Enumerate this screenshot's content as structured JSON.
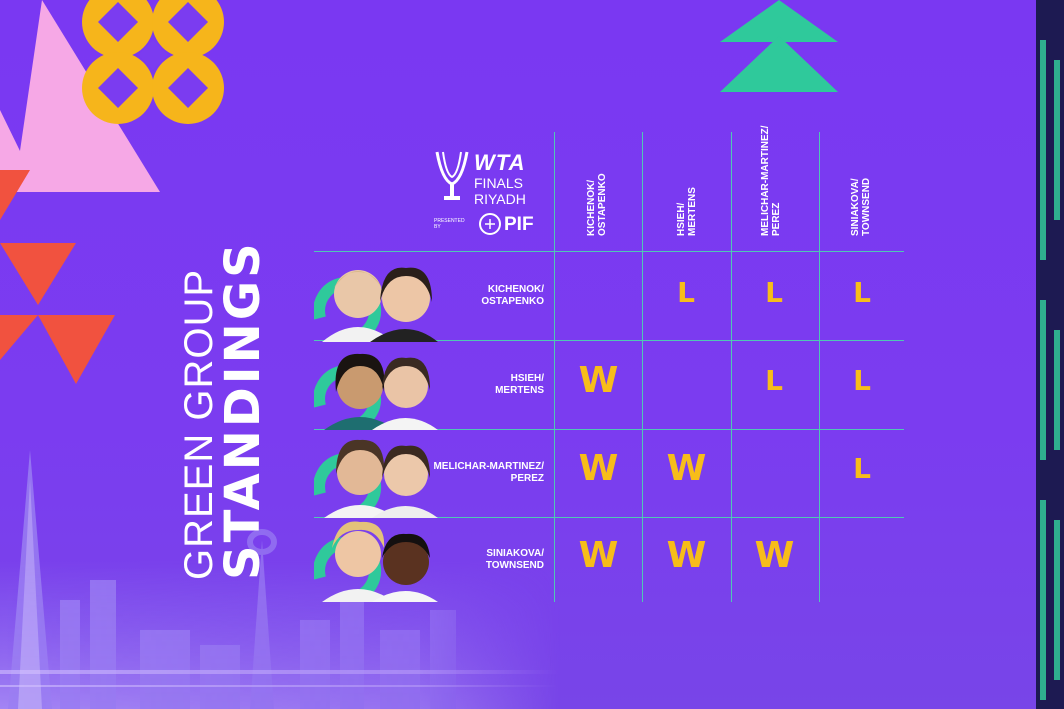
{
  "title": {
    "line1": "GREEN GROUP",
    "line2": "STANDINGS"
  },
  "logo": {
    "brand": "WTA",
    "line2": "FINALS",
    "line3": "RIYADH",
    "presented_by": "PRESENTED BY",
    "sponsor": "PIF"
  },
  "columns": [
    "KICHENOK/ OSTAPENKO",
    "HSIEH/ MERTENS",
    "MELICHAR-MARTINEZ/ PEREZ",
    "SINIAKOVA/ TOWNSEND"
  ],
  "columns_lines": [
    [
      "KICHENOK/",
      "OSTAPENKO"
    ],
    [
      "HSIEH/",
      "MERTENS"
    ],
    [
      "MELICHAR-MARTINEZ/",
      "PEREZ"
    ],
    [
      "SINIAKOVA/",
      "TOWNSEND"
    ]
  ],
  "rows": [
    {
      "line1": "KICHENOK/",
      "line2": "OSTAPENKO",
      "results": [
        "",
        "L",
        "L",
        "L"
      ]
    },
    {
      "line1": "HSIEH/",
      "line2": "MERTENS",
      "results": [
        "W",
        "",
        "L",
        "L"
      ]
    },
    {
      "line1": "MELICHAR-MARTINEZ/",
      "line2": "PEREZ",
      "results": [
        "W",
        "W",
        "",
        "L"
      ]
    },
    {
      "line1": "SINIAKOVA/",
      "line2": "TOWNSEND",
      "results": [
        "W",
        "W",
        "W",
        ""
      ]
    }
  ],
  "colors": {
    "background": "#7c3cf0",
    "grid": "#4fc7b5",
    "result": "#f7bd1a",
    "accent_yellow": "#f6b51b",
    "accent_pink": "#f6a8e6",
    "accent_red": "#f1523f",
    "accent_green": "#2fc99b"
  }
}
